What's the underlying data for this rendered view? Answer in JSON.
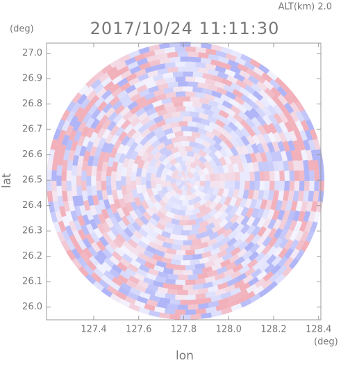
{
  "chart_data": {
    "type": "map",
    "title": "2017/10/24 11:11:30",
    "subtitle": "ALT(km) 2.0",
    "x_label": "lon",
    "y_label": "lat",
    "x_unit": "(deg)",
    "y_unit": "(deg)",
    "xlim": [
      127.19,
      128.41
    ],
    "ylim": [
      25.95,
      27.04
    ],
    "xticks": [
      127.4,
      127.6,
      127.8,
      {
        "value": 128.0,
        "label": "128.0"
      },
      128.2,
      128.4
    ],
    "yticks": [
      {
        "value": 26.0,
        "label": "26.0"
      },
      26.1,
      26.2,
      26.3,
      26.4,
      26.5,
      26.6,
      26.7,
      26.8,
      26.9,
      {
        "value": 27.0,
        "label": "27.0"
      }
    ]
  }
}
